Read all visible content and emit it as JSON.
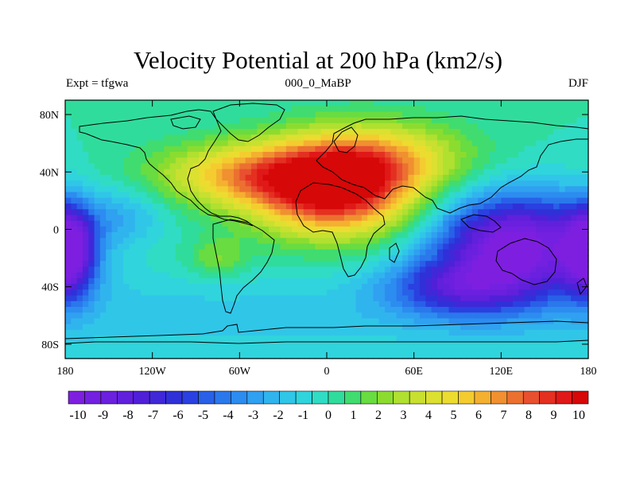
{
  "title": "Velocity Potential at 200 hPa (km2/s)",
  "subtitle_left": "Expt = tfgwa",
  "subtitle_center": "000_0_MaBP",
  "subtitle_right": "DJF",
  "map": {
    "lon_range": [
      -180,
      180
    ],
    "lat_range": [
      -90,
      90
    ],
    "lon_ticks": [
      {
        "value": -180,
        "label": "180"
      },
      {
        "value": -120,
        "label": "120W"
      },
      {
        "value": -60,
        "label": "60W"
      },
      {
        "value": 0,
        "label": "0"
      },
      {
        "value": 60,
        "label": "60E"
      },
      {
        "value": 120,
        "label": "120E"
      },
      {
        "value": 180,
        "label": "180"
      }
    ],
    "lat_ticks": [
      {
        "value": 80,
        "label": "80N"
      },
      {
        "value": 40,
        "label": "40N"
      },
      {
        "value": 0,
        "label": "0"
      },
      {
        "value": -40,
        "label": "40S"
      },
      {
        "value": -80,
        "label": "80S"
      }
    ],
    "field_centers": [
      {
        "lon": 5,
        "lat": 28,
        "value": 10,
        "spread_lon": 55,
        "spread_lat": 32
      },
      {
        "lon": -60,
        "lat": 38,
        "value": 5,
        "spread_lon": 60,
        "spread_lat": 22
      },
      {
        "lon": 40,
        "lat": 50,
        "value": 4,
        "spread_lon": 60,
        "spread_lat": 25
      },
      {
        "lon": 130,
        "lat": -10,
        "value": -10,
        "spread_lon": 55,
        "spread_lat": 35
      },
      {
        "lon": -178,
        "lat": -15,
        "value": -9,
        "spread_lon": 18,
        "spread_lat": 30
      },
      {
        "lon": 90,
        "lat": -40,
        "value": -5,
        "spread_lon": 50,
        "spread_lat": 20
      },
      {
        "lon": -75,
        "lat": -20,
        "value": 2,
        "spread_lon": 20,
        "spread_lat": 14
      },
      {
        "lon": -140,
        "lat": 10,
        "value": -2,
        "spread_lon": 30,
        "spread_lat": 20
      }
    ]
  },
  "colorbar": {
    "levels": [
      -10,
      -9,
      -8,
      -7,
      -6,
      -5,
      -4,
      -3,
      -2,
      -1,
      0,
      1,
      2,
      3,
      4,
      5,
      6,
      7,
      8,
      9,
      10
    ],
    "colors": [
      "#7e1fe0",
      "#7420e0",
      "#6a20de",
      "#6020dc",
      "#5020d8",
      "#4028d8",
      "#3030d8",
      "#2a40e0",
      "#2860e8",
      "#2a78ec",
      "#2c8cf0",
      "#30a0f0",
      "#30b4ee",
      "#30c6e8",
      "#30d4dc",
      "#30dcc4",
      "#30dc9c",
      "#40dc70",
      "#68dc40",
      "#8cdc30",
      "#b0e030",
      "#c8e030",
      "#dce030",
      "#ecdc30",
      "#f4cc30",
      "#f4b030",
      "#f09030",
      "#ec7030",
      "#e85030",
      "#e43020",
      "#e01818",
      "#d60808"
    ]
  }
}
